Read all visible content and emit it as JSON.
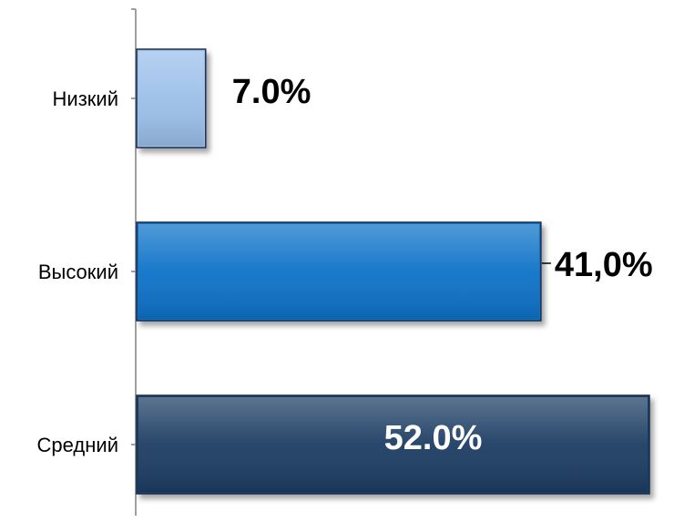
{
  "chart_data": {
    "type": "bar",
    "orientation": "horizontal",
    "categories": [
      "Низкий",
      "Высокий",
      "Средний"
    ],
    "values": [
      7.0,
      41.0,
      52.0
    ],
    "value_labels": [
      "7.0%",
      "41,0%",
      "52.0%"
    ],
    "title": "",
    "xlabel": "",
    "ylabel": "",
    "xlim": [
      0,
      52
    ],
    "grid": false,
    "legend": "none",
    "colors": [
      "#9bbfe9",
      "#0f72c8",
      "#1f3c64"
    ],
    "label_colors": [
      "#000000",
      "#000000",
      "#ffffff"
    ]
  }
}
